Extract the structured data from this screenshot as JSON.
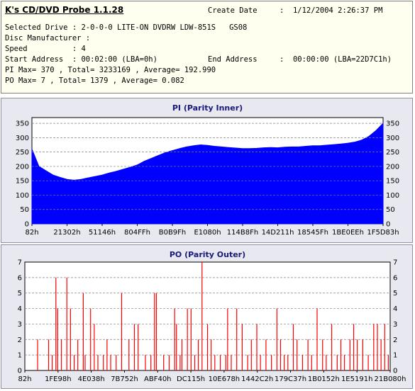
{
  "app": {
    "title": "K's CD/DVD Probe 1.1.28"
  },
  "info": {
    "create_date_label": "Create Date",
    "create_date_value": ":  1/12/2004 2:26:37 PM",
    "selected_drive": "Selected Drive : 2-0-0-0 LITE-ON DVDRW LDW-851S   GS08",
    "disc_manufacturer": "Disc Manufacturer :",
    "speed": "Speed          : 4",
    "start_address": "Start Address  : 00:02:00 (LBA=0h)",
    "end_address_label": "End Address",
    "end_address_value": ":  00:00:00 (LBA=22D7C1h)",
    "pi_line": "PI Max= 370 , Total= 3233169 , Average= 192.990",
    "po_line": "PO Max= 7 , Total= 1379 , Average= 0.082"
  },
  "chart_data": [
    {
      "type": "area",
      "title": "PI (Parity Inner)",
      "color": "#0000ff",
      "ylim": [
        0,
        370
      ],
      "yticks": [
        0,
        50,
        100,
        150,
        200,
        250,
        300,
        350
      ],
      "xticks": [
        "82h",
        "21302h",
        "51146h",
        "804FFh",
        "B0B9Fh",
        "E1080h",
        "114B8Fh",
        "14D211h",
        "18545Fh",
        "1BE0EEh",
        "1F5D83h"
      ],
      "grid": true,
      "x": [
        0,
        0.02,
        0.04,
        0.06,
        0.08,
        0.1,
        0.12,
        0.14,
        0.16,
        0.18,
        0.2,
        0.22,
        0.24,
        0.26,
        0.28,
        0.3,
        0.32,
        0.34,
        0.36,
        0.38,
        0.4,
        0.42,
        0.44,
        0.46,
        0.48,
        0.5,
        0.52,
        0.54,
        0.56,
        0.58,
        0.6,
        0.62,
        0.64,
        0.66,
        0.68,
        0.7,
        0.72,
        0.74,
        0.76,
        0.78,
        0.8,
        0.82,
        0.84,
        0.86,
        0.88,
        0.9,
        0.92,
        0.94,
        0.96,
        0.98,
        1.0
      ],
      "values": [
        260,
        200,
        185,
        170,
        162,
        155,
        152,
        155,
        160,
        165,
        170,
        177,
        183,
        190,
        197,
        205,
        218,
        228,
        238,
        248,
        255,
        262,
        268,
        272,
        275,
        273,
        270,
        268,
        266,
        264,
        262,
        262,
        263,
        265,
        266,
        265,
        267,
        268,
        268,
        270,
        272,
        272,
        274,
        276,
        278,
        281,
        285,
        292,
        305,
        325,
        350
      ]
    },
    {
      "type": "bar",
      "title": "PO (Parity Outer)",
      "color": "#ff0000",
      "ylim": [
        0,
        7
      ],
      "yticks": [
        0,
        1,
        2,
        3,
        4,
        5,
        6,
        7
      ],
      "xticks": [
        "82h",
        "1FE98h",
        "4E038h",
        "7B752h",
        "ABF40h",
        "DC115h",
        "10E678h",
        "1442C2h",
        "179C37h",
        "1B0152h",
        "1E5191h",
        "21B080h"
      ],
      "grid": true,
      "x": [
        0.035,
        0.065,
        0.075,
        0.085,
        0.09,
        0.1,
        0.115,
        0.125,
        0.135,
        0.145,
        0.16,
        0.165,
        0.18,
        0.19,
        0.2,
        0.215,
        0.225,
        0.235,
        0.25,
        0.265,
        0.285,
        0.3,
        0.31,
        0.33,
        0.345,
        0.355,
        0.36,
        0.38,
        0.395,
        0.41,
        0.415,
        0.425,
        0.43,
        0.445,
        0.455,
        0.465,
        0.475,
        0.485,
        0.5,
        0.51,
        0.52,
        0.535,
        0.55,
        0.555,
        0.565,
        0.58,
        0.595,
        0.61,
        0.62,
        0.635,
        0.645,
        0.66,
        0.675,
        0.69,
        0.7,
        0.71,
        0.72,
        0.735,
        0.745,
        0.76,
        0.775,
        0.785,
        0.8,
        0.815,
        0.825,
        0.84,
        0.855,
        0.865,
        0.875,
        0.89,
        0.9,
        0.91,
        0.925,
        0.94,
        0.955,
        0.965,
        0.975,
        0.985,
        0.995
      ],
      "values": [
        2,
        2,
        1,
        6,
        4,
        2,
        6,
        4,
        1,
        2,
        5,
        1,
        4,
        3,
        1,
        1,
        2,
        1,
        1,
        5,
        2,
        3,
        3,
        1,
        1,
        5,
        5,
        1,
        1,
        4,
        3,
        1,
        2,
        4,
        4,
        1,
        2,
        7,
        3,
        2,
        1,
        1,
        1,
        4,
        1,
        4,
        3,
        1,
        2,
        3,
        1,
        2,
        1,
        4,
        2,
        1,
        1,
        3,
        2,
        1,
        2,
        1,
        4,
        2,
        1,
        3,
        1,
        2,
        1,
        2,
        3,
        2,
        2,
        1,
        3,
        3,
        2,
        3,
        1
      ]
    }
  ]
}
